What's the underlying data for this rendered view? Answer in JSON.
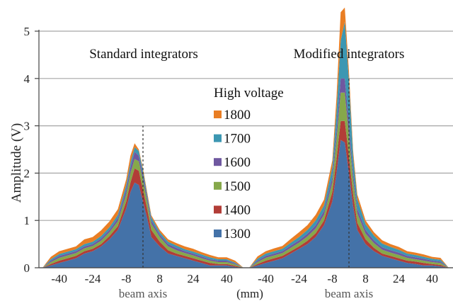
{
  "chart_data": {
    "type": "area",
    "ylabel": "Amplitude (V)",
    "ylim": [
      0,
      5.5
    ],
    "y_ticks": [
      "0",
      "1",
      "2",
      "3",
      "4",
      "5"
    ],
    "y_tick_values": [
      0,
      1,
      2,
      3,
      4,
      5
    ],
    "x_tick_labels": [
      "-40",
      "-24",
      "-8",
      "8",
      "24",
      "40"
    ],
    "x_tick_values": [
      -40,
      -24,
      -8,
      8,
      24,
      40
    ],
    "x_unit_label": "(mm)",
    "grid": true,
    "legend": {
      "title": "High voltage",
      "placement": "center",
      "order": [
        "1800",
        "1700",
        "1600",
        "1500",
        "1400",
        "1300"
      ]
    },
    "panels": [
      {
        "title": "Standard integrators",
        "axis_label": "beam axis",
        "x": [
          -48,
          -44,
          -40,
          -36,
          -32,
          -28,
          -24,
          -20,
          -16,
          -12,
          -8,
          -6,
          -4,
          -2,
          0,
          2,
          4,
          8,
          12,
          16,
          20,
          24,
          28,
          32,
          36,
          40,
          44,
          48
        ],
        "series": [
          {
            "name": "1300",
            "color": "#4472A8",
            "values": [
              0,
              0.05,
              0.1,
              0.15,
              0.2,
              0.3,
              0.35,
              0.45,
              0.6,
              0.8,
              1.25,
              1.6,
              1.8,
              1.75,
              1.4,
              1.05,
              0.65,
              0.45,
              0.3,
              0.25,
              0.2,
              0.15,
              0.1,
              0.05,
              0.05,
              0.05,
              0.02,
              0
            ]
          },
          {
            "name": "1400",
            "color": "#B23D37",
            "values": [
              0,
              0.03,
              0.05,
              0.05,
              0.05,
              0.05,
              0.05,
              0.05,
              0.07,
              0.08,
              0.15,
              0.2,
              0.3,
              0.3,
              0.25,
              0.2,
              0.15,
              0.1,
              0.07,
              0.05,
              0.05,
              0.05,
              0.05,
              0.05,
              0.03,
              0.03,
              0.02,
              0
            ]
          },
          {
            "name": "1500",
            "color": "#86A84A",
            "values": [
              0,
              0.04,
              0.06,
              0.06,
              0.06,
              0.06,
              0.06,
              0.07,
              0.08,
              0.1,
              0.15,
              0.2,
              0.2,
              0.2,
              0.2,
              0.15,
              0.13,
              0.1,
              0.08,
              0.07,
              0.06,
              0.06,
              0.05,
              0.05,
              0.04,
              0.04,
              0.03,
              0
            ]
          },
          {
            "name": "1600",
            "color": "#6F58A0",
            "values": [
              0,
              0.03,
              0.04,
              0.04,
              0.04,
              0.04,
              0.04,
              0.05,
              0.05,
              0.07,
              0.1,
              0.12,
              0.15,
              0.12,
              0.1,
              0.08,
              0.07,
              0.05,
              0.05,
              0.05,
              0.04,
              0.04,
              0.04,
              0.03,
              0.03,
              0.03,
              0.02,
              0
            ]
          },
          {
            "name": "1700",
            "color": "#3C97B2",
            "values": [
              0,
              0.03,
              0.04,
              0.04,
              0.04,
              0.05,
              0.05,
              0.05,
              0.06,
              0.07,
              0.1,
              0.1,
              0.1,
              0.1,
              0.1,
              0.07,
              0.07,
              0.05,
              0.05,
              0.05,
              0.04,
              0.04,
              0.04,
              0.04,
              0.03,
              0.03,
              0.02,
              0
            ]
          },
          {
            "name": "1800",
            "color": "#E97E24",
            "values": [
              0,
              0.05,
              0.06,
              0.06,
              0.06,
              0.1,
              0.1,
              0.12,
              0.12,
              0.12,
              0.12,
              0.15,
              0.08,
              0.03,
              0.05,
              0.05,
              0.04,
              0.05,
              0.05,
              0.05,
              0.06,
              0.06,
              0.05,
              0.05,
              0.04,
              0.04,
              0.04,
              0
            ]
          }
        ]
      },
      {
        "title": "Modified integrators",
        "axis_label": "beam axis",
        "x": [
          -48,
          -44,
          -40,
          -36,
          -32,
          -28,
          -24,
          -20,
          -16,
          -12,
          -8,
          -6,
          -4,
          -2,
          0,
          2,
          4,
          8,
          12,
          16,
          20,
          24,
          28,
          32,
          36,
          40,
          44,
          48
        ],
        "series": [
          {
            "name": "1300",
            "color": "#4472A8",
            "values": [
              0,
              0.05,
              0.1,
              0.15,
              0.2,
              0.3,
              0.4,
              0.5,
              0.65,
              0.9,
              1.4,
              2.0,
              2.7,
              2.65,
              2.0,
              1.3,
              0.8,
              0.5,
              0.35,
              0.25,
              0.2,
              0.15,
              0.1,
              0.08,
              0.05,
              0.05,
              0.03,
              0
            ]
          },
          {
            "name": "1400",
            "color": "#B23D37",
            "values": [
              0,
              0.03,
              0.05,
              0.05,
              0.05,
              0.05,
              0.05,
              0.07,
              0.08,
              0.1,
              0.2,
              0.3,
              0.4,
              0.45,
              0.35,
              0.25,
              0.15,
              0.1,
              0.07,
              0.05,
              0.05,
              0.05,
              0.05,
              0.05,
              0.05,
              0.03,
              0.03,
              0
            ]
          },
          {
            "name": "1500",
            "color": "#86A84A",
            "values": [
              0,
              0.04,
              0.06,
              0.06,
              0.06,
              0.07,
              0.08,
              0.09,
              0.1,
              0.12,
              0.2,
              0.4,
              0.6,
              0.6,
              0.45,
              0.3,
              0.2,
              0.12,
              0.1,
              0.08,
              0.07,
              0.07,
              0.06,
              0.05,
              0.05,
              0.04,
              0.04,
              0
            ]
          },
          {
            "name": "1600",
            "color": "#6F58A0",
            "values": [
              0,
              0.03,
              0.04,
              0.04,
              0.04,
              0.05,
              0.05,
              0.06,
              0.07,
              0.08,
              0.12,
              0.2,
              0.3,
              0.3,
              0.25,
              0.15,
              0.1,
              0.08,
              0.06,
              0.05,
              0.05,
              0.05,
              0.04,
              0.04,
              0.04,
              0.03,
              0.03,
              0
            ]
          },
          {
            "name": "1700",
            "color": "#3C97B2",
            "values": [
              0,
              0.04,
              0.05,
              0.05,
              0.05,
              0.06,
              0.07,
              0.08,
              0.1,
              0.12,
              0.2,
              0.4,
              0.8,
              1.2,
              0.9,
              0.35,
              0.2,
              0.12,
              0.1,
              0.08,
              0.07,
              0.06,
              0.05,
              0.05,
              0.04,
              0.04,
              0.04,
              0
            ]
          },
          {
            "name": "1800",
            "color": "#E97E24",
            "values": [
              0,
              0.05,
              0.05,
              0.06,
              0.06,
              0.08,
              0.1,
              0.1,
              0.12,
              0.12,
              0.15,
              0.3,
              0.6,
              0.3,
              0.2,
              0.12,
              0.1,
              0.08,
              0.07,
              0.07,
              0.06,
              0.06,
              0.05,
              0.05,
              0.05,
              0.04,
              0.04,
              0
            ]
          }
        ]
      }
    ]
  }
}
